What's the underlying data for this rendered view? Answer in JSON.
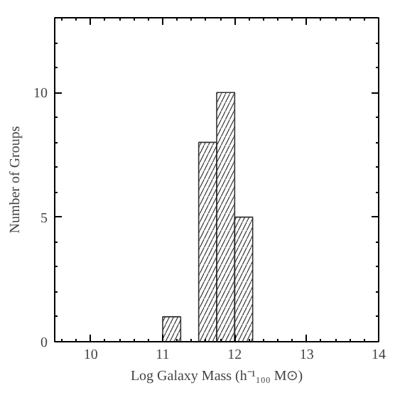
{
  "chart_data": {
    "type": "histogram",
    "bins": [
      11,
      11.25,
      11.5,
      11.75,
      12,
      12.25
    ],
    "values": [
      1,
      0,
      8,
      10,
      5
    ],
    "color": "#333333",
    "xlim": [
      9.5,
      14
    ],
    "ylim": [
      0,
      13
    ],
    "xticks": [
      10,
      11,
      12,
      13,
      14
    ],
    "yticks": [
      0,
      5,
      10
    ],
    "xlabel": "Log Galaxy Mass (h⁻¹₁₀₀ M⊙)",
    "ylabel": "Number of Groups",
    "grid": false
  }
}
